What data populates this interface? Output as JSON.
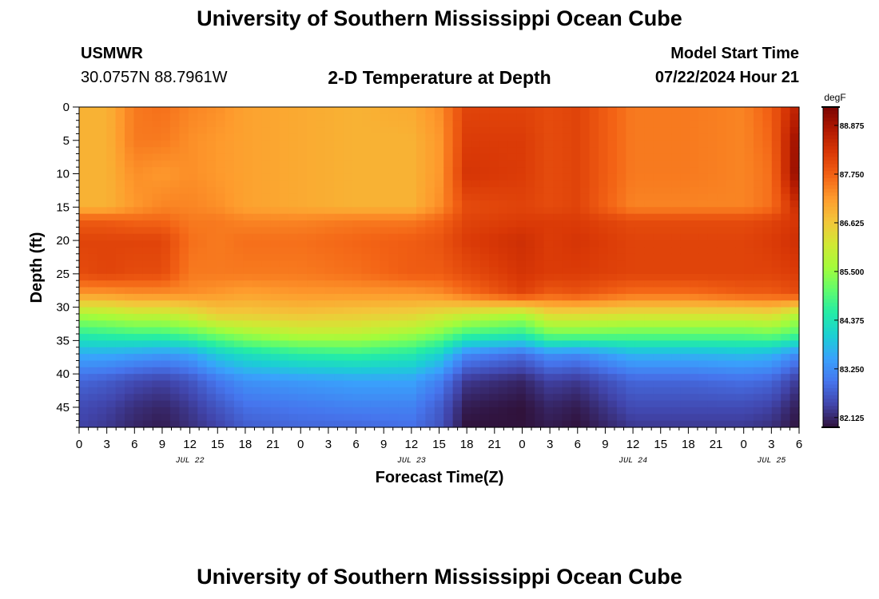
{
  "header": {
    "title": "University of Southern Mississippi Ocean Cube",
    "station": "USMWR",
    "coords": "30.0757N  88.7961W",
    "subtitle": "2-D Temperature at Depth",
    "model_start_label": "Model Start Time",
    "model_start_value": "07/22/2024 Hour 21"
  },
  "footer": {
    "title": "University of Southern Mississippi Ocean Cube"
  },
  "chart_data": {
    "type": "heatmap",
    "xlabel": "Forecast Time(Z)",
    "ylabel": "Depth (ft)",
    "x_tick_labels": [
      "0",
      "3",
      "6",
      "9",
      "12",
      "15",
      "18",
      "21",
      "0",
      "3",
      "6",
      "9",
      "12",
      "15",
      "18",
      "21",
      "0",
      "3",
      "6",
      "9",
      "12",
      "15",
      "18",
      "21",
      "0",
      "3",
      "6"
    ],
    "date_labels": [
      {
        "text": "JUL 22",
        "tick_index": 4
      },
      {
        "text": "JUL 23",
        "tick_index": 12
      },
      {
        "text": "JUL 24",
        "tick_index": 20
      },
      {
        "text": "JUL 25",
        "tick_index": 25
      }
    ],
    "y_ticks": [
      0,
      5,
      10,
      15,
      20,
      25,
      30,
      35,
      40,
      45
    ],
    "ylim": [
      0,
      48
    ],
    "colorbar": {
      "unit": "degF",
      "range": [
        81.9,
        89.3
      ],
      "ticks": [
        82.125,
        83.25,
        84.375,
        85.5,
        86.625,
        87.75,
        88.875
      ],
      "tick_labels": [
        "82.125",
        "83.250",
        "84.375",
        "85.500",
        "86.625",
        "87.750",
        "88.875"
      ],
      "colors": [
        "#30123b",
        "#4145ab",
        "#4675ed",
        "#39a2fc",
        "#1bcfd4",
        "#24eca6",
        "#61fc6c",
        "#a4fc3b",
        "#d1e834",
        "#f3c63a",
        "#fe9b2d",
        "#f36315",
        "#d93806",
        "#b11901",
        "#7a0402"
      ]
    },
    "temperature_profiles_degF": {
      "depth_ft": [
        0,
        5,
        10,
        15,
        17,
        20,
        25,
        28,
        31,
        34,
        37,
        41,
        45,
        48
      ],
      "profiles": [
        {
          "hours": 0,
          "values": [
            86.9,
            86.9,
            86.9,
            86.9,
            87.8,
            88.1,
            88.0,
            87.2,
            85.7,
            84.6,
            83.6,
            82.8,
            82.5,
            82.4
          ]
        },
        {
          "hours": 3,
          "values": [
            86.9,
            86.9,
            86.9,
            86.9,
            87.8,
            88.1,
            88.1,
            87.2,
            85.8,
            84.7,
            83.6,
            82.7,
            82.4,
            82.3
          ]
        },
        {
          "hours": 6,
          "values": [
            87.5,
            87.5,
            87.3,
            87.2,
            87.7,
            88.1,
            88.0,
            87.3,
            86.0,
            84.8,
            83.5,
            82.5,
            82.2,
            82.1
          ]
        },
        {
          "hours": 9,
          "values": [
            87.6,
            87.5,
            87.2,
            87.4,
            87.7,
            88.1,
            88.0,
            87.3,
            86.0,
            84.8,
            83.4,
            82.4,
            82.1,
            82.0
          ]
        },
        {
          "hours": 12,
          "values": [
            87.4,
            87.3,
            87.3,
            87.4,
            87.5,
            87.6,
            87.5,
            87.3,
            86.2,
            85.0,
            83.5,
            82.6,
            82.3,
            82.2
          ]
        },
        {
          "hours": 15,
          "values": [
            87.3,
            87.2,
            87.2,
            87.3,
            87.5,
            87.5,
            87.5,
            87.2,
            86.6,
            85.3,
            84.0,
            83.0,
            82.6,
            82.4
          ]
        },
        {
          "hours": 18,
          "values": [
            87.1,
            87.1,
            87.1,
            87.1,
            87.4,
            87.6,
            87.5,
            87.1,
            86.6,
            85.6,
            84.3,
            83.3,
            82.9,
            82.7
          ]
        },
        {
          "hours": 24,
          "values": [
            87.0,
            87.0,
            87.0,
            87.0,
            87.4,
            87.6,
            87.5,
            87.2,
            86.7,
            85.9,
            84.6,
            83.4,
            83.0,
            82.8
          ]
        },
        {
          "hours": 30,
          "values": [
            86.9,
            86.9,
            86.9,
            86.9,
            87.5,
            87.7,
            87.6,
            87.2,
            86.6,
            85.9,
            84.7,
            83.5,
            83.1,
            82.8
          ]
        },
        {
          "hours": 36,
          "values": [
            87.0,
            86.9,
            86.9,
            86.9,
            87.5,
            87.8,
            87.8,
            87.2,
            86.5,
            85.6,
            84.5,
            83.5,
            83.1,
            82.9
          ]
        },
        {
          "hours": 39,
          "values": [
            87.3,
            87.2,
            87.2,
            87.3,
            87.7,
            87.9,
            87.8,
            87.3,
            86.3,
            85.3,
            84.1,
            83.1,
            82.7,
            82.6
          ]
        },
        {
          "hours": 42,
          "values": [
            88.1,
            88.2,
            88.3,
            88.0,
            88.1,
            88.2,
            88.0,
            87.6,
            86.1,
            84.8,
            83.2,
            82.3,
            82.0,
            81.9
          ]
        },
        {
          "hours": 48,
          "values": [
            88.1,
            88.2,
            88.2,
            88.1,
            88.2,
            88.4,
            88.3,
            88.1,
            85.8,
            84.6,
            82.9,
            82.1,
            81.9,
            81.9
          ]
        },
        {
          "hours": 51,
          "values": [
            88.0,
            88.0,
            88.0,
            88.0,
            88.2,
            88.2,
            88.2,
            87.8,
            86.4,
            85.2,
            83.3,
            82.4,
            82.1,
            82.0
          ]
        },
        {
          "hours": 54,
          "values": [
            88.1,
            88.1,
            88.1,
            88.1,
            88.2,
            88.3,
            88.2,
            87.9,
            86.4,
            85.2,
            83.2,
            82.3,
            82.0,
            81.9
          ]
        },
        {
          "hours": 60,
          "values": [
            87.5,
            87.5,
            87.5,
            87.4,
            88.0,
            88.1,
            88.1,
            87.6,
            86.3,
            85.1,
            83.7,
            82.8,
            82.5,
            82.3
          ]
        },
        {
          "hours": 66,
          "values": [
            87.5,
            87.5,
            87.5,
            87.4,
            88.0,
            88.1,
            88.1,
            87.6,
            86.3,
            85.1,
            83.7,
            82.8,
            82.5,
            82.3
          ]
        },
        {
          "hours": 72,
          "values": [
            87.4,
            87.4,
            87.4,
            87.4,
            88.0,
            88.1,
            88.1,
            87.8,
            86.3,
            85.1,
            83.8,
            82.9,
            82.5,
            82.3
          ]
        },
        {
          "hours": 75,
          "values": [
            87.8,
            87.7,
            87.6,
            87.6,
            88.1,
            88.2,
            88.1,
            87.8,
            86.4,
            85.2,
            83.7,
            82.8,
            82.4,
            82.2
          ]
        },
        {
          "hours": 78,
          "values": [
            88.7,
            89.1,
            89.2,
            88.5,
            88.3,
            88.4,
            88.2,
            88.0,
            85.8,
            84.9,
            83.2,
            82.3,
            82.0,
            81.9
          ]
        }
      ]
    }
  }
}
